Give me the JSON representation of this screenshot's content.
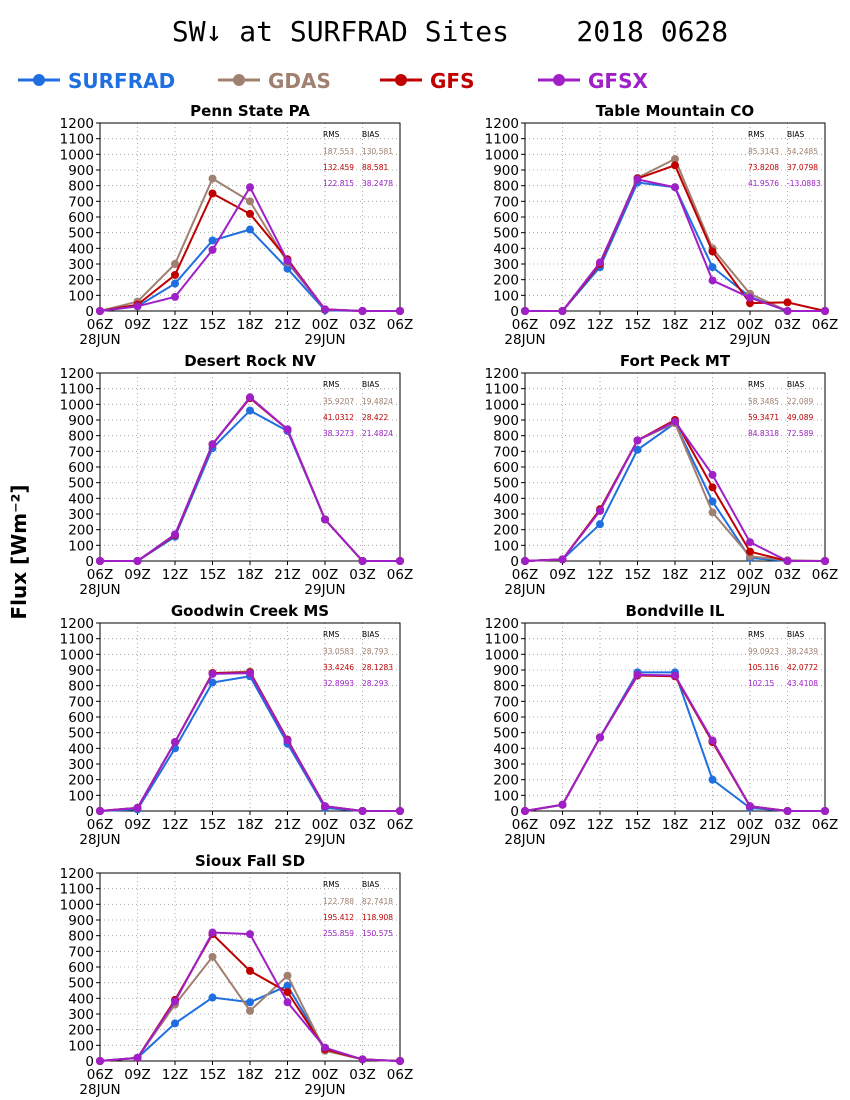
{
  "title": "SW↓ at SURFRAD Sites    2018 0628",
  "ylabel": "Flux [Wm⁻²]",
  "legend": [
    {
      "name": "SURFRAD",
      "color": "#1f6fe0"
    },
    {
      "name": "GDAS",
      "color": "#a08070"
    },
    {
      "name": "GFS",
      "color": "#c00000"
    },
    {
      "name": "GFSX",
      "color": "#a020c8"
    }
  ],
  "colors": {
    "SURFRAD": "#1f6fe0",
    "GDAS": "#a08070",
    "GFS": "#c00000",
    "GFSX": "#a020c8"
  },
  "chart_data": [
    {
      "type": "line",
      "title": "Penn State PA",
      "x": [
        "06Z",
        "09Z",
        "12Z",
        "15Z",
        "18Z",
        "21Z",
        "00Z",
        "03Z",
        "06Z"
      ],
      "x_sublabels": [
        "28JUN",
        "",
        "",
        "",
        "",
        "",
        "29JUN",
        "",
        ""
      ],
      "ylim": [
        0,
        1200
      ],
      "yticks": [
        0,
        100,
        200,
        300,
        400,
        500,
        600,
        700,
        800,
        900,
        1000,
        1100,
        1200
      ],
      "grid": true,
      "stats_header": [
        "RMS",
        "BIAS"
      ],
      "stats": [
        {
          "series": "GDAS",
          "rms": "187.553",
          "bias": "130.581"
        },
        {
          "series": "GFS",
          "rms": "132.459",
          "bias": "88.581"
        },
        {
          "series": "GFSX",
          "rms": "122.815",
          "bias": "38.2478"
        }
      ],
      "series": [
        {
          "name": "SURFRAD",
          "values": [
            0,
            30,
            175,
            450,
            520,
            270,
            5,
            0,
            0
          ]
        },
        {
          "name": "GDAS",
          "values": [
            0,
            60,
            300,
            845,
            700,
            310,
            10,
            0,
            0
          ]
        },
        {
          "name": "GFS",
          "values": [
            0,
            40,
            230,
            750,
            620,
            330,
            10,
            0,
            0
          ]
        },
        {
          "name": "GFSX",
          "values": [
            0,
            30,
            90,
            390,
            790,
            320,
            10,
            0,
            0
          ]
        }
      ]
    },
    {
      "type": "line",
      "title": "Table Mountain CO",
      "x": [
        "06Z",
        "09Z",
        "12Z",
        "15Z",
        "18Z",
        "21Z",
        "00Z",
        "03Z",
        "06Z"
      ],
      "x_sublabels": [
        "28JUN",
        "",
        "",
        "",
        "",
        "",
        "29JUN",
        "",
        ""
      ],
      "ylim": [
        0,
        1200
      ],
      "yticks": [
        0,
        100,
        200,
        300,
        400,
        500,
        600,
        700,
        800,
        900,
        1000,
        1100,
        1200
      ],
      "grid": true,
      "stats_header": [
        "RMS",
        "BIAS"
      ],
      "stats": [
        {
          "series": "GDAS",
          "rms": "85.3143",
          "bias": "54.2485"
        },
        {
          "series": "GFS",
          "rms": "73.8208",
          "bias": "37.0798"
        },
        {
          "series": "GFSX",
          "rms": "41.9576",
          "bias": "-13.0883"
        }
      ],
      "series": [
        {
          "name": "SURFRAD",
          "values": [
            0,
            0,
            280,
            820,
            790,
            280,
            90,
            0,
            0
          ]
        },
        {
          "name": "GDAS",
          "values": [
            0,
            0,
            300,
            850,
            970,
            400,
            110,
            0,
            0
          ]
        },
        {
          "name": "GFS",
          "values": [
            0,
            0,
            300,
            845,
            930,
            380,
            50,
            55,
            0
          ]
        },
        {
          "name": "GFSX",
          "values": [
            0,
            0,
            310,
            840,
            790,
            195,
            85,
            0,
            0
          ]
        }
      ]
    },
    {
      "type": "line",
      "title": "Desert Rock NV",
      "x": [
        "06Z",
        "09Z",
        "12Z",
        "15Z",
        "18Z",
        "21Z",
        "00Z",
        "03Z",
        "06Z"
      ],
      "x_sublabels": [
        "28JUN",
        "",
        "",
        "",
        "",
        "",
        "29JUN",
        "",
        ""
      ],
      "ylim": [
        0,
        1200
      ],
      "yticks": [
        0,
        100,
        200,
        300,
        400,
        500,
        600,
        700,
        800,
        900,
        1000,
        1100,
        1200
      ],
      "grid": true,
      "stats_header": [
        "RMS",
        "BIAS"
      ],
      "stats": [
        {
          "series": "GDAS",
          "rms": "35.9207",
          "bias": "19.4824"
        },
        {
          "series": "GFS",
          "rms": "41.0312",
          "bias": "28.422"
        },
        {
          "series": "GFSX",
          "rms": "38.3273",
          "bias": "21.4824"
        }
      ],
      "series": [
        {
          "name": "SURFRAD",
          "values": [
            0,
            0,
            155,
            720,
            960,
            830,
            265,
            0,
            0
          ]
        },
        {
          "name": "GDAS",
          "values": [
            0,
            0,
            165,
            745,
            1040,
            840,
            265,
            0,
            0
          ]
        },
        {
          "name": "GFS",
          "values": [
            0,
            0,
            165,
            745,
            1040,
            840,
            265,
            0,
            0
          ]
        },
        {
          "name": "GFSX",
          "values": [
            0,
            0,
            170,
            745,
            1045,
            840,
            265,
            0,
            0
          ]
        }
      ]
    },
    {
      "type": "line",
      "title": "Fort Peck MT",
      "x": [
        "06Z",
        "09Z",
        "12Z",
        "15Z",
        "18Z",
        "21Z",
        "00Z",
        "03Z",
        "06Z"
      ],
      "x_sublabels": [
        "28JUN",
        "",
        "",
        "",
        "",
        "",
        "29JUN",
        "",
        ""
      ],
      "ylim": [
        0,
        1200
      ],
      "yticks": [
        0,
        100,
        200,
        300,
        400,
        500,
        600,
        700,
        800,
        900,
        1000,
        1100,
        1200
      ],
      "grid": true,
      "stats_header": [
        "RMS",
        "BIAS"
      ],
      "stats": [
        {
          "series": "GDAS",
          "rms": "58.3485",
          "bias": "22.089"
        },
        {
          "series": "GFS",
          "rms": "59.3471",
          "bias": "49.089"
        },
        {
          "series": "GFSX",
          "rms": "84.8318",
          "bias": "72.589"
        }
      ],
      "series": [
        {
          "name": "SURFRAD",
          "values": [
            0,
            10,
            235,
            710,
            880,
            380,
            20,
            0,
            0
          ]
        },
        {
          "name": "GDAS",
          "values": [
            0,
            10,
            320,
            770,
            880,
            310,
            30,
            5,
            0
          ]
        },
        {
          "name": "GFS",
          "values": [
            0,
            10,
            330,
            770,
            900,
            470,
            60,
            0,
            0
          ]
        },
        {
          "name": "GFSX",
          "values": [
            0,
            10,
            320,
            770,
            890,
            550,
            120,
            0,
            0
          ]
        }
      ]
    },
    {
      "type": "line",
      "title": "Goodwin Creek MS",
      "x": [
        "06Z",
        "09Z",
        "12Z",
        "15Z",
        "18Z",
        "21Z",
        "00Z",
        "03Z",
        "06Z"
      ],
      "x_sublabels": [
        "28JUN",
        "",
        "",
        "",
        "",
        "",
        "29JUN",
        "",
        ""
      ],
      "ylim": [
        0,
        1200
      ],
      "yticks": [
        0,
        100,
        200,
        300,
        400,
        500,
        600,
        700,
        800,
        900,
        1000,
        1100,
        1200
      ],
      "grid": true,
      "stats_header": [
        "RMS",
        "BIAS"
      ],
      "stats": [
        {
          "series": "GDAS",
          "rms": "33.0583",
          "bias": "28.793"
        },
        {
          "series": "GFS",
          "rms": "33.4246",
          "bias": "28.1283"
        },
        {
          "series": "GFSX",
          "rms": "32.8993",
          "bias": "28.293"
        }
      ],
      "series": [
        {
          "name": "SURFRAD",
          "values": [
            0,
            10,
            400,
            820,
            860,
            430,
            20,
            0,
            0
          ]
        },
        {
          "name": "GDAS",
          "values": [
            0,
            20,
            440,
            880,
            890,
            455,
            30,
            0,
            0
          ]
        },
        {
          "name": "GFS",
          "values": [
            0,
            20,
            440,
            880,
            885,
            455,
            30,
            0,
            0
          ]
        },
        {
          "name": "GFSX",
          "values": [
            0,
            20,
            440,
            875,
            880,
            450,
            30,
            0,
            0
          ]
        }
      ]
    },
    {
      "type": "line",
      "title": "Bondville IL",
      "x": [
        "06Z",
        "09Z",
        "12Z",
        "15Z",
        "18Z",
        "21Z",
        "00Z",
        "03Z",
        "06Z"
      ],
      "x_sublabels": [
        "28JUN",
        "",
        "",
        "",
        "",
        "",
        "29JUN",
        "",
        ""
      ],
      "ylim": [
        0,
        1200
      ],
      "yticks": [
        0,
        100,
        200,
        300,
        400,
        500,
        600,
        700,
        800,
        900,
        1000,
        1100,
        1200
      ],
      "grid": true,
      "stats_header": [
        "RMS",
        "BIAS"
      ],
      "stats": [
        {
          "series": "GDAS",
          "rms": "99.0923",
          "bias": "38.2439"
        },
        {
          "series": "GFS",
          "rms": "105.116",
          "bias": "42.0772"
        },
        {
          "series": "GFSX",
          "rms": "102.15",
          "bias": "43.4108"
        }
      ],
      "series": [
        {
          "name": "SURFRAD",
          "values": [
            0,
            40,
            470,
            885,
            885,
            200,
            20,
            0,
            0
          ]
        },
        {
          "name": "GDAS",
          "values": [
            0,
            40,
            470,
            870,
            860,
            445,
            30,
            0,
            0
          ]
        },
        {
          "name": "GFS",
          "values": [
            0,
            40,
            470,
            865,
            860,
            440,
            30,
            0,
            0
          ]
        },
        {
          "name": "GFSX",
          "values": [
            0,
            40,
            470,
            870,
            865,
            450,
            30,
            0,
            0
          ]
        }
      ]
    },
    {
      "type": "line",
      "title": "Sioux Fall SD",
      "x": [
        "06Z",
        "09Z",
        "12Z",
        "15Z",
        "18Z",
        "21Z",
        "00Z",
        "03Z",
        "06Z"
      ],
      "x_sublabels": [
        "28JUN",
        "",
        "",
        "",
        "",
        "",
        "29JUN",
        "",
        ""
      ],
      "ylim": [
        0,
        1200
      ],
      "yticks": [
        0,
        100,
        200,
        300,
        400,
        500,
        600,
        700,
        800,
        900,
        1000,
        1100,
        1200
      ],
      "grid": true,
      "stats_header": [
        "RMS",
        "BIAS"
      ],
      "stats": [
        {
          "series": "GDAS",
          "rms": "122.788",
          "bias": "82.7418"
        },
        {
          "series": "GFS",
          "rms": "195.412",
          "bias": "118.908"
        },
        {
          "series": "GFSX",
          "rms": "255.859",
          "bias": "150.575"
        }
      ],
      "series": [
        {
          "name": "SURFRAD",
          "values": [
            0,
            20,
            240,
            405,
            375,
            480,
            80,
            10,
            0
          ]
        },
        {
          "name": "GDAS",
          "values": [
            0,
            20,
            360,
            665,
            320,
            545,
            65,
            10,
            0
          ]
        },
        {
          "name": "GFS",
          "values": [
            0,
            20,
            390,
            810,
            575,
            440,
            75,
            10,
            0
          ]
        },
        {
          "name": "GFSX",
          "values": [
            0,
            20,
            380,
            820,
            810,
            375,
            85,
            10,
            0
          ]
        }
      ]
    }
  ]
}
